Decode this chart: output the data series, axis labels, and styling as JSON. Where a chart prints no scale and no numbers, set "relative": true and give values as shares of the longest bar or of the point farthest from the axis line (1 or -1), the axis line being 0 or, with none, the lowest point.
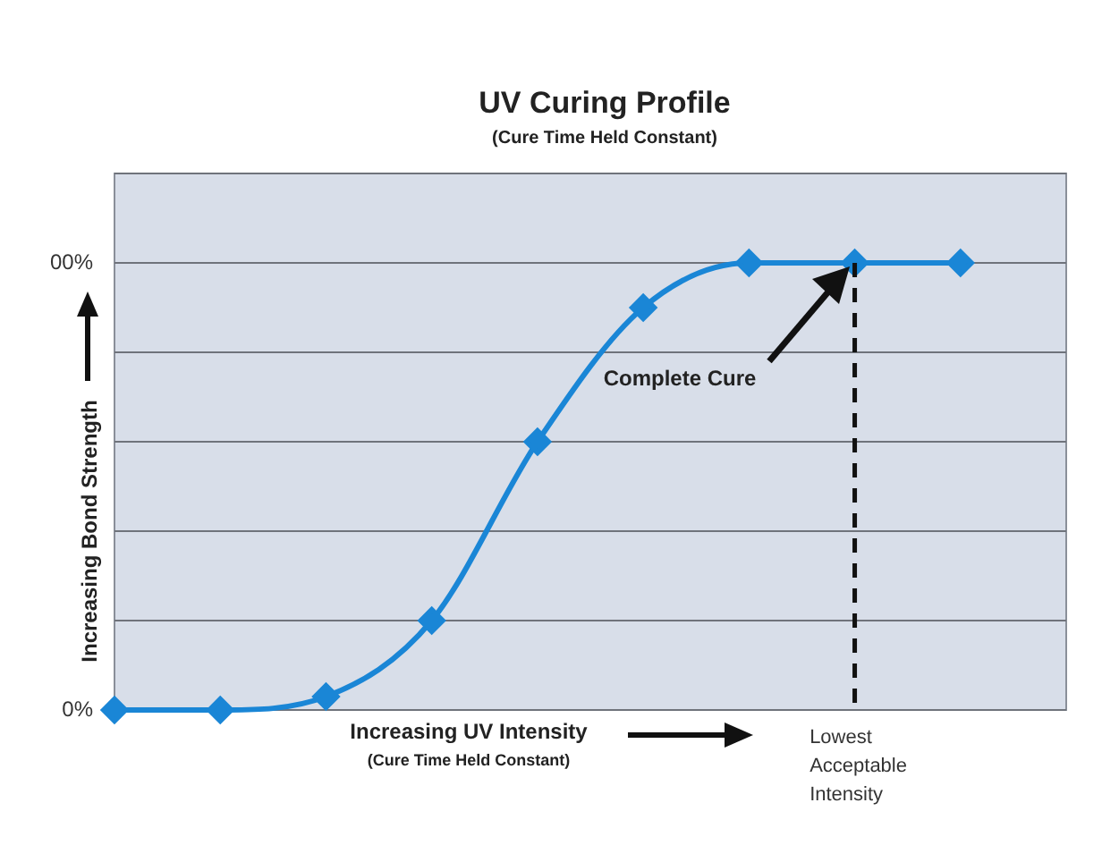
{
  "chart_data": {
    "type": "line",
    "title": "UV Curing Profile",
    "subtitle": "(Cure Time Held Constant)",
    "xlabel": "Increasing UV Intensity\n(Cure Time Held Constant)",
    "ylabel": "Increasing Bond Strength",
    "categories": [
      null,
      null,
      null,
      null,
      null,
      null,
      null,
      null,
      null,
      null
    ],
    "relative": true,
    "series": [
      {
        "color": "#1a86d6",
        "values": [
          0,
          0,
          0.03,
          0.2,
          0.6,
          0.9,
          1,
          1,
          1,
          null
        ]
      }
    ],
    "grid": "y",
    "legend": false,
    "marker": "diamond",
    "line_style": "solid",
    "annotations": [
      "Complete Cure",
      "00%",
      "0%",
      "Lowest\nAcceptable\nIntensity"
    ]
  }
}
